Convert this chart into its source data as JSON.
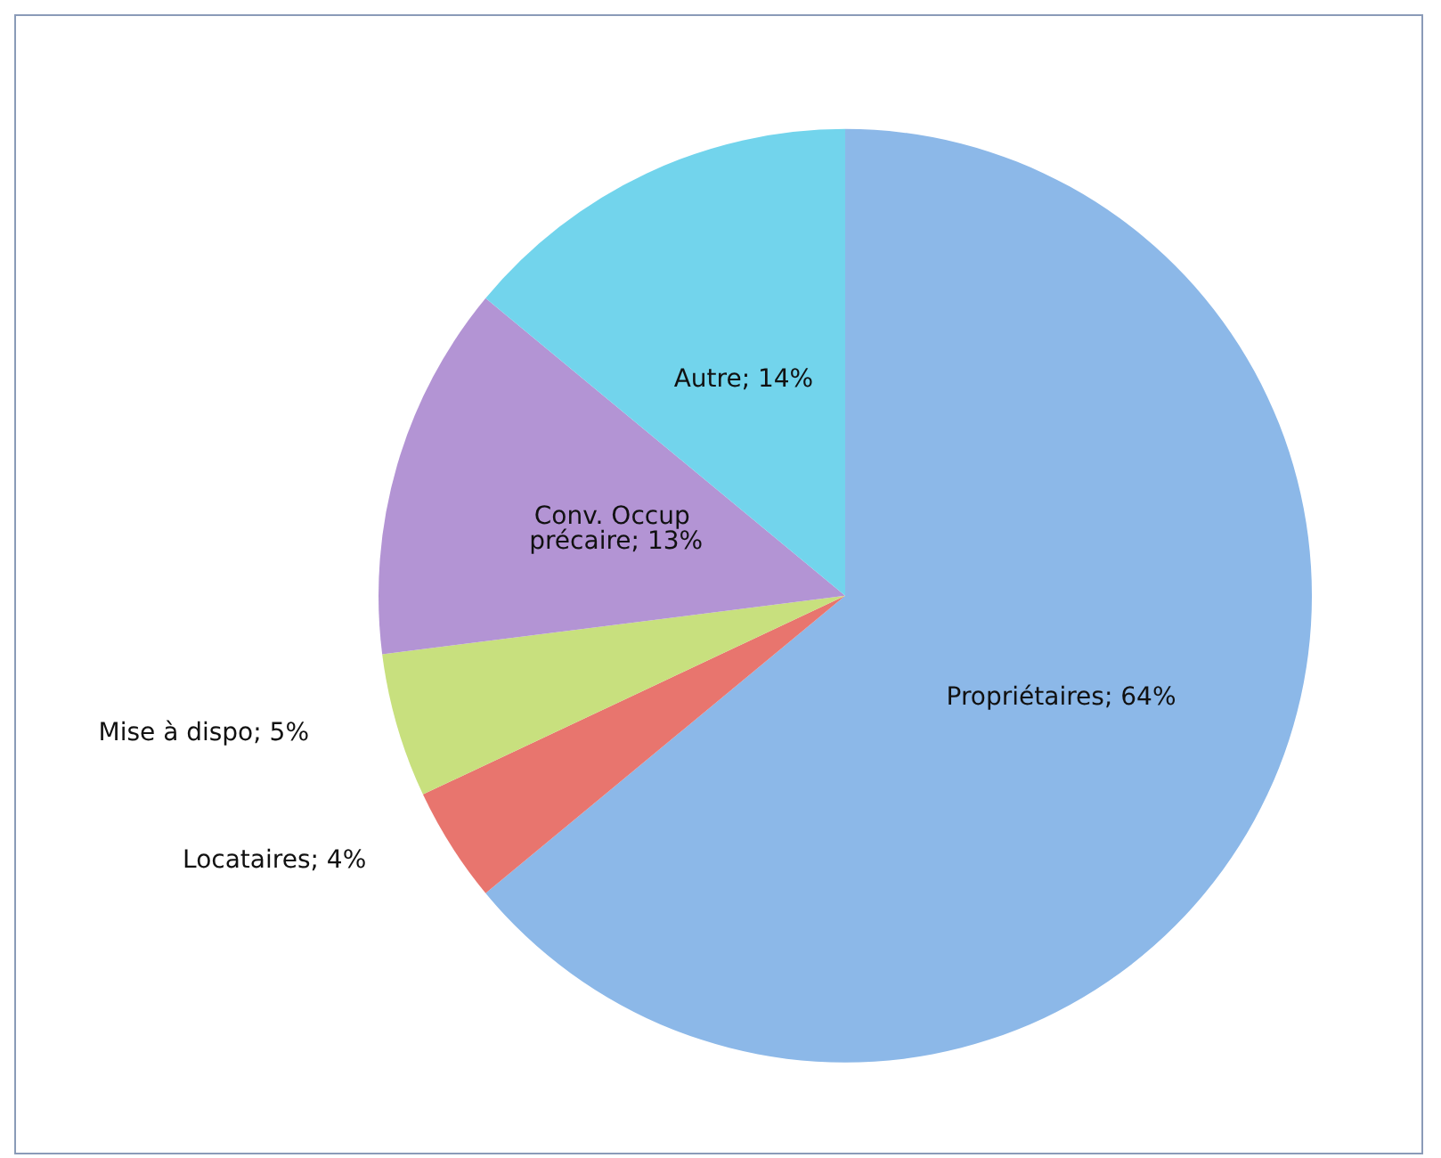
{
  "chart_data": {
    "type": "pie",
    "categories": [
      "Propriétaires",
      "Locataires",
      "Mise à dispo",
      "Conv. Occup précaire",
      "Autre"
    ],
    "values": [
      64,
      4,
      5,
      13,
      14
    ],
    "value_labels": [
      "64%",
      "4%",
      "5%",
      "13%",
      "14%"
    ],
    "colors": [
      "#8cb8e8",
      "#e8756e",
      "#c8e07e",
      "#b394d4",
      "#72d4ec"
    ],
    "legend": false
  }
}
